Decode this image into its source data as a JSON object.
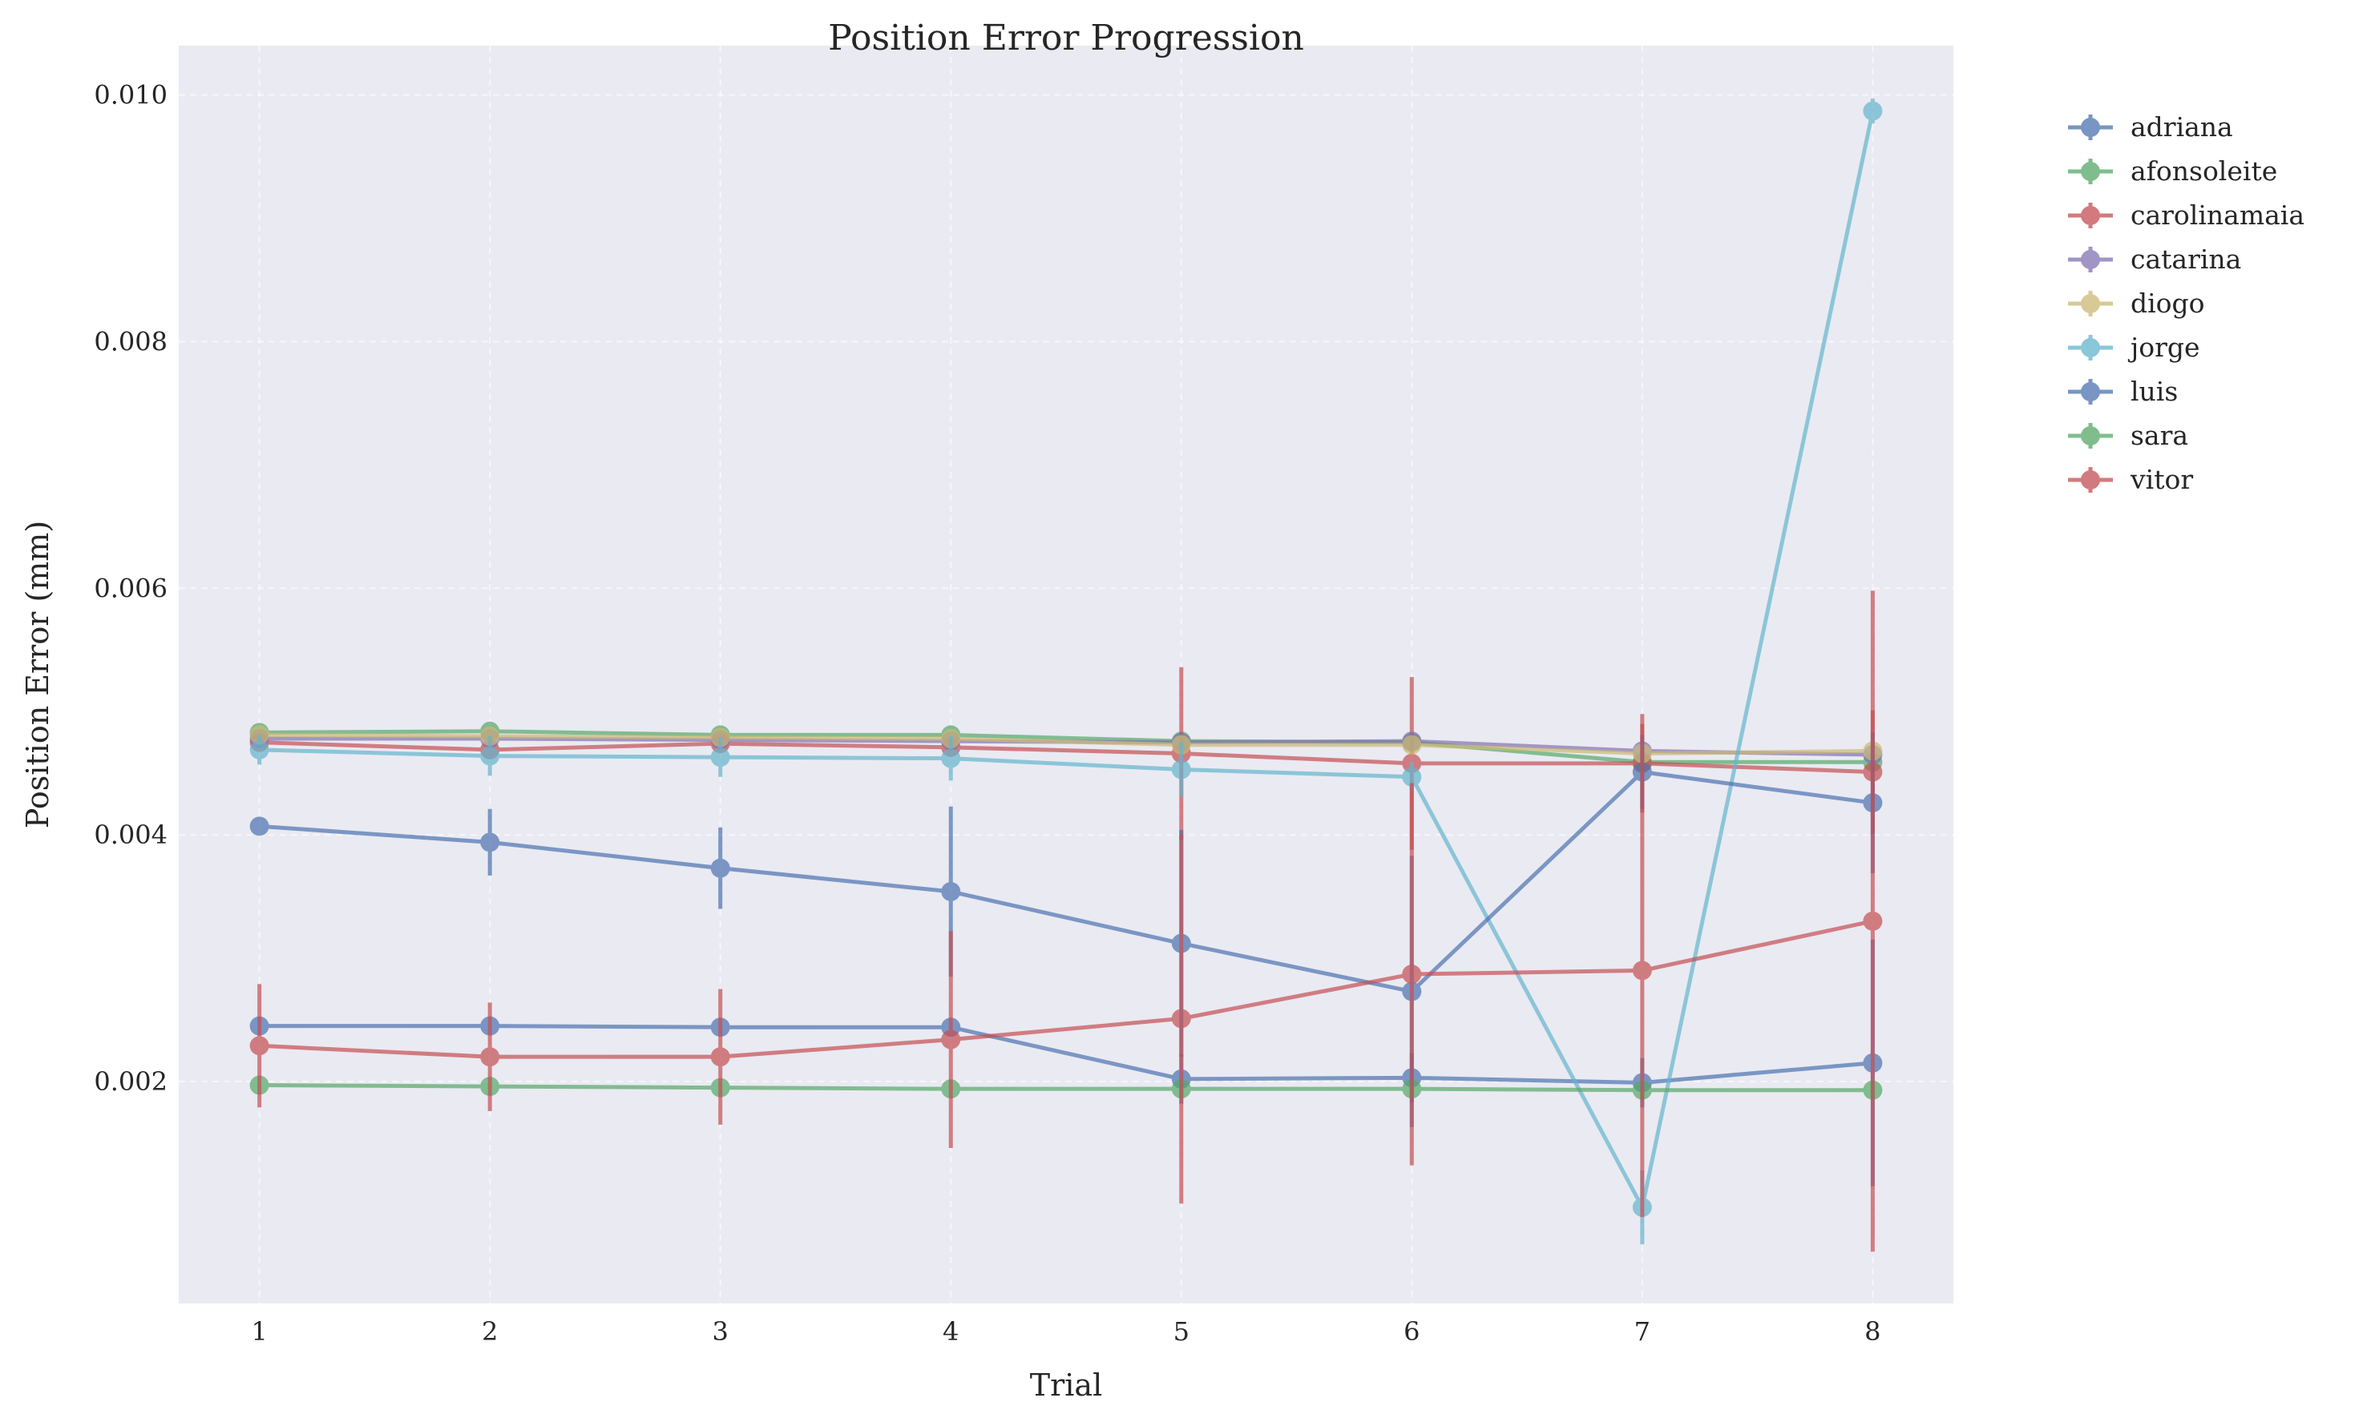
{
  "chart_data": {
    "type": "line",
    "title": "Position Error Progression",
    "xlabel": "Trial",
    "ylabel": "Position Error (mm)",
    "x": [
      1,
      2,
      3,
      4,
      5,
      6,
      7,
      8
    ],
    "xlim": [
      0.65,
      8.35
    ],
    "ylim": [
      0.0002,
      0.0104
    ],
    "xticks": [
      1,
      2,
      3,
      4,
      5,
      6,
      7,
      8
    ],
    "yticks": [
      0.002,
      0.004,
      0.006,
      0.008,
      0.01
    ],
    "ytick_labels": [
      "0.002",
      "0.004",
      "0.006",
      "0.008",
      "0.010"
    ],
    "grid": true,
    "legend_position": "outside-upper-right",
    "series": [
      {
        "name": "adriana",
        "color": "#4c72b0",
        "values": [
          0.00245,
          0.00245,
          0.00244,
          0.00244,
          0.00202,
          0.00203,
          0.00199,
          0.00215
        ],
        "errors": [
          6e-05,
          6e-05,
          6e-05,
          6e-05,
          0.0002,
          0.0002,
          0.0002,
          0.001
        ]
      },
      {
        "name": "afonsoleite",
        "color": "#55a868",
        "values": [
          0.00483,
          0.00484,
          0.00481,
          0.00481,
          0.00476,
          0.00475,
          0.00459,
          0.00459
        ],
        "errors": [
          5e-05,
          5e-05,
          5e-05,
          5e-05,
          5e-05,
          5e-05,
          8e-05,
          8e-05
        ]
      },
      {
        "name": "carolinamaia",
        "color": "#c44e52",
        "values": [
          0.00475,
          0.00469,
          0.00474,
          0.00471,
          0.00466,
          0.00458,
          0.00458,
          0.00451
        ],
        "errors": [
          5e-05,
          5e-05,
          5e-05,
          5e-05,
          0.0007,
          0.0007,
          0.0004,
          0.0005
        ]
      },
      {
        "name": "catarina",
        "color": "#8172b2",
        "values": [
          0.00478,
          0.00478,
          0.00477,
          0.00476,
          0.00475,
          0.00476,
          0.00468,
          0.00465
        ],
        "errors": [
          4e-05,
          4e-05,
          4e-05,
          4e-05,
          4e-05,
          4e-05,
          4e-05,
          4e-05
        ]
      },
      {
        "name": "diogo",
        "color": "#ccb974",
        "values": [
          0.00481,
          0.0048,
          0.00479,
          0.00478,
          0.00473,
          0.00473,
          0.00466,
          0.00468
        ],
        "errors": [
          4e-05,
          4e-05,
          4e-05,
          4e-05,
          4e-05,
          4e-05,
          4e-05,
          4e-05
        ]
      },
      {
        "name": "jorge",
        "color": "#64b5cd",
        "values": [
          0.00469,
          0.00464,
          0.00463,
          0.00462,
          0.00453,
          0.00447,
          0.00098,
          0.00987
        ],
        "errors": [
          0.00012,
          0.00016,
          0.00016,
          0.00018,
          0.00022,
          0.00012,
          0.0003,
          0.0001
        ]
      },
      {
        "name": "luis",
        "color": "#4c72b0",
        "values": [
          0.00407,
          0.00394,
          0.00373,
          0.00354,
          0.00312,
          0.00273,
          0.00451,
          0.00426
        ],
        "errors": [
          7e-05,
          0.00027,
          0.00033,
          0.00069,
          0.00092,
          0.0011,
          0.0003,
          0.00057
        ]
      },
      {
        "name": "sara",
        "color": "#55a868",
        "values": [
          0.00197,
          0.00196,
          0.00195,
          0.00194,
          0.00194,
          0.00194,
          0.00193,
          0.00193
        ],
        "errors": [
          3e-05,
          3e-05,
          3e-05,
          3e-05,
          3e-05,
          3e-05,
          3e-05,
          3e-05
        ]
      },
      {
        "name": "vitor",
        "color": "#c44e52",
        "values": [
          0.00229,
          0.0022,
          0.0022,
          0.00234,
          0.00251,
          0.00287,
          0.0029,
          0.0033
        ],
        "errors": [
          0.0005,
          0.00044,
          0.00055,
          0.00088,
          0.0015,
          0.00155,
          0.002,
          0.00268
        ]
      }
    ]
  }
}
